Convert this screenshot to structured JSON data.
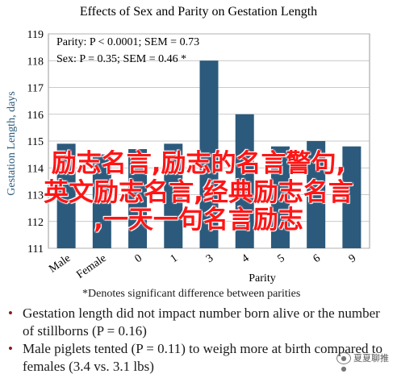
{
  "chart_data": {
    "type": "bar",
    "title": "Effects of Sex and Parity on Gestation Length",
    "ylabel": "Gestation Length, days",
    "xlabel": "Parity",
    "categories": [
      "Male",
      "Female",
      "0",
      "1",
      "3",
      "4",
      "5",
      "6",
      "9"
    ],
    "values": [
      114.9,
      114.5,
      114.7,
      114.9,
      118.0,
      116.0,
      114.8,
      115.0,
      114.8
    ],
    "ylim": [
      111,
      119
    ],
    "yticks": [
      111,
      112,
      113,
      114,
      115,
      116,
      117,
      118,
      119
    ],
    "bar_color": "#2b5a7c",
    "annotations": [
      "Parity: P < 0.0001; SEM = 0.73",
      "Sex: P = 0.35; SEM = 0.46 *"
    ],
    "footnote": "*Denotes significant difference between parities"
  },
  "notes": [
    "Gestation length did not impact number born alive or the number of stillborns (P = 0.16)",
    "Male piglets tented (P = 0.11) to weigh more at birth compared to females (3.4 vs. 3.1 lbs)"
  ],
  "overlay": {
    "line1": "励志名言,励志的名言警句,",
    "line2": "英文励志名言,经典励志名言",
    "line3": ",一天一句名言励志"
  },
  "watermark": "夏夏聊推",
  "colors": {
    "bar": "#2b5a7c",
    "overlay_text": "#ff1515",
    "bullet": "#8b1a1a"
  }
}
